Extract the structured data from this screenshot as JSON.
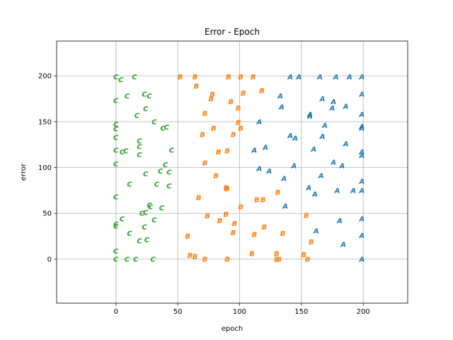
{
  "chart_data": {
    "type": "scatter",
    "title": "Error - Epoch",
    "xlabel": "epoch",
    "ylabel": "error",
    "xlim": [
      -48,
      236
    ],
    "ylim": [
      -48,
      238
    ],
    "xticks": [
      0,
      50,
      100,
      150,
      200
    ],
    "yticks": [
      0,
      50,
      100,
      150,
      200
    ],
    "grid": true,
    "series": [
      {
        "marker": "A",
        "color": "#1f77b4",
        "points": [
          [
            141,
            199
          ],
          [
            148,
            199
          ],
          [
            165,
            199
          ],
          [
            178,
            199
          ],
          [
            189,
            199
          ],
          [
            199,
            199
          ],
          [
            199,
            180
          ],
          [
            133,
            178
          ],
          [
            167,
            175
          ],
          [
            176,
            172
          ],
          [
            186,
            167
          ],
          [
            134,
            166
          ],
          [
            175,
            165
          ],
          [
            157,
            158
          ],
          [
            157,
            156
          ],
          [
            199,
            158
          ],
          [
            116,
            150
          ],
          [
            169,
            146
          ],
          [
            199,
            145
          ],
          [
            199,
            143
          ],
          [
            141,
            135
          ],
          [
            145,
            132
          ],
          [
            167,
            134
          ],
          [
            186,
            126
          ],
          [
            121,
            122
          ],
          [
            112,
            119
          ],
          [
            160,
            120
          ],
          [
            199,
            117
          ],
          [
            199,
            113
          ],
          [
            176,
            106
          ],
          [
            144,
            102
          ],
          [
            183,
            102
          ],
          [
            116,
            99
          ],
          [
            124,
            96
          ],
          [
            136,
            88
          ],
          [
            166,
            91
          ],
          [
            199,
            85
          ],
          [
            156,
            78
          ],
          [
            179,
            75
          ],
          [
            192,
            75
          ],
          [
            199,
            75
          ],
          [
            161,
            71
          ],
          [
            137,
            58
          ],
          [
            199,
            44
          ],
          [
            181,
            42
          ],
          [
            162,
            31
          ],
          [
            199,
            26
          ],
          [
            184,
            16
          ],
          [
            199,
            0
          ]
        ]
      },
      {
        "marker": "B",
        "color": "#ff7f0e",
        "points": [
          [
            52,
            199
          ],
          [
            64,
            199
          ],
          [
            91,
            199
          ],
          [
            101,
            199
          ],
          [
            111,
            199
          ],
          [
            65,
            189
          ],
          [
            118,
            184
          ],
          [
            103,
            181
          ],
          [
            78,
            180
          ],
          [
            77,
            175
          ],
          [
            93,
            172
          ],
          [
            99,
            165
          ],
          [
            72,
            159
          ],
          [
            99,
            149
          ],
          [
            79,
            143
          ],
          [
            101,
            143
          ],
          [
            70,
            136
          ],
          [
            95,
            136
          ],
          [
            83,
            117
          ],
          [
            90,
            118
          ],
          [
            72,
            105
          ],
          [
            81,
            91
          ],
          [
            89,
            78
          ],
          [
            90,
            77
          ],
          [
            67,
            67
          ],
          [
            114,
            65
          ],
          [
            119,
            65
          ],
          [
            131,
            73
          ],
          [
            101,
            57
          ],
          [
            74,
            47
          ],
          [
            89,
            49
          ],
          [
            84,
            42
          ],
          [
            96,
            39
          ],
          [
            120,
            35
          ],
          [
            95,
            29
          ],
          [
            112,
            27
          ],
          [
            135,
            28
          ],
          [
            154,
            48
          ],
          [
            158,
            19
          ],
          [
            58,
            25
          ],
          [
            60,
            4
          ],
          [
            64,
            3
          ],
          [
            72,
            0
          ],
          [
            90,
            0
          ],
          [
            110,
            6
          ],
          [
            130,
            6
          ],
          [
            130,
            0
          ],
          [
            132,
            0
          ],
          [
            152,
            5
          ],
          [
            155,
            0
          ]
        ]
      },
      {
        "marker": "C",
        "color": "#2ca02c",
        "points": [
          [
            0,
            199
          ],
          [
            4,
            196
          ],
          [
            15,
            199
          ],
          [
            0,
            173
          ],
          [
            9,
            178
          ],
          [
            23,
            180
          ],
          [
            27,
            178
          ],
          [
            24,
            164
          ],
          [
            17,
            157
          ],
          [
            31,
            150
          ],
          [
            0,
            147
          ],
          [
            0,
            142
          ],
          [
            38,
            143
          ],
          [
            41,
            144
          ],
          [
            0,
            133
          ],
          [
            19,
            129
          ],
          [
            19,
            123
          ],
          [
            0,
            119
          ],
          [
            5,
            117
          ],
          [
            8,
            118
          ],
          [
            19,
            114
          ],
          [
            45,
            119
          ],
          [
            0,
            104
          ],
          [
            24,
            93
          ],
          [
            40,
            103
          ],
          [
            36,
            96
          ],
          [
            43,
            95
          ],
          [
            11,
            82
          ],
          [
            33,
            82
          ],
          [
            43,
            80
          ],
          [
            0,
            68
          ],
          [
            27,
            59
          ],
          [
            28,
            57
          ],
          [
            21,
            50
          ],
          [
            24,
            51
          ],
          [
            37,
            56
          ],
          [
            5,
            44
          ],
          [
            31,
            43
          ],
          [
            0,
            38
          ],
          [
            0,
            36
          ],
          [
            23,
            35
          ],
          [
            11,
            28
          ],
          [
            19,
            20
          ],
          [
            25,
            21
          ],
          [
            0,
            9
          ],
          [
            0,
            0
          ],
          [
            9,
            0
          ],
          [
            16,
            0
          ],
          [
            30,
            0
          ]
        ]
      }
    ]
  }
}
